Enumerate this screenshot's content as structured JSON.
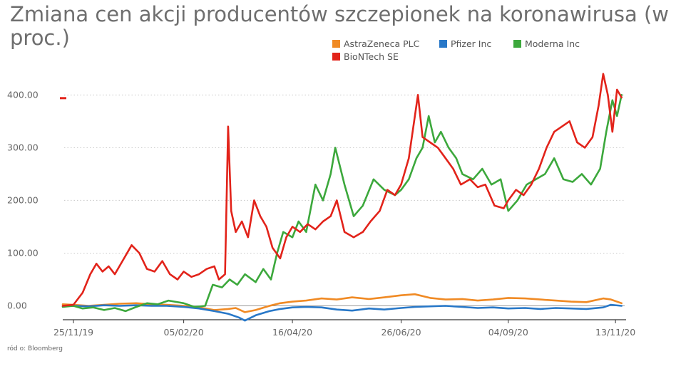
{
  "title": "Zmiana cen akcji producentów szczepionek na koronawirusa (w proc.)",
  "source": "ród o: Bloomberg",
  "chart_data": {
    "type": "line",
    "title": "Zmiana cen akcji producentów szczepionek na koronawirusa (w proc.)",
    "xlabel": "",
    "ylabel": "",
    "ylim": [
      -25,
      445
    ],
    "y_ticks": [
      0,
      100,
      200,
      300,
      400
    ],
    "y_tick_labels": [
      "0.00",
      "100.00",
      "200.00",
      "300.00",
      "400.00"
    ],
    "x_ticks": [
      "2019-11-25",
      "2020-02-05",
      "2020-04-16",
      "2020-06-26",
      "2020-09-04",
      "2020-11-13"
    ],
    "x_tick_labels": [
      "25/11/19",
      "05/02/20",
      "16/04/20",
      "26/06/20",
      "04/09/20",
      "13/11/20"
    ],
    "grid": "horizontal-dotted",
    "legend": "top-right",
    "series": [
      {
        "name": "AstraZeneca PLC",
        "color": "#f08a24",
        "points": [
          [
            "2019-11-18",
            3
          ],
          [
            "2019-11-25",
            2
          ],
          [
            "2019-12-05",
            0
          ],
          [
            "2019-12-15",
            2
          ],
          [
            "2019-12-25",
            4
          ],
          [
            "2020-01-05",
            5
          ],
          [
            "2020-01-15",
            3
          ],
          [
            "2020-01-25",
            2
          ],
          [
            "2020-02-05",
            0
          ],
          [
            "2020-02-15",
            -3
          ],
          [
            "2020-02-25",
            -8
          ],
          [
            "2020-03-05",
            -6
          ],
          [
            "2020-03-10",
            -4
          ],
          [
            "2020-03-16",
            -12
          ],
          [
            "2020-03-23",
            -8
          ],
          [
            "2020-04-01",
            0
          ],
          [
            "2020-04-08",
            5
          ],
          [
            "2020-04-16",
            8
          ],
          [
            "2020-04-25",
            10
          ],
          [
            "2020-05-05",
            14
          ],
          [
            "2020-05-15",
            12
          ],
          [
            "2020-05-25",
            16
          ],
          [
            "2020-06-05",
            13
          ],
          [
            "2020-06-15",
            16
          ],
          [
            "2020-06-26",
            20
          ],
          [
            "2020-07-05",
            22
          ],
          [
            "2020-07-15",
            15
          ],
          [
            "2020-07-25",
            12
          ],
          [
            "2020-08-05",
            13
          ],
          [
            "2020-08-15",
            10
          ],
          [
            "2020-08-25",
            12
          ],
          [
            "2020-09-04",
            15
          ],
          [
            "2020-09-15",
            14
          ],
          [
            "2020-09-25",
            12
          ],
          [
            "2020-10-05",
            10
          ],
          [
            "2020-10-15",
            8
          ],
          [
            "2020-10-25",
            7
          ],
          [
            "2020-11-05",
            14
          ],
          [
            "2020-11-10",
            12
          ],
          [
            "2020-11-17",
            5
          ]
        ]
      },
      {
        "name": "Pfizer Inc",
        "color": "#2878c8",
        "points": [
          [
            "2019-11-18",
            -1
          ],
          [
            "2019-11-25",
            0
          ],
          [
            "2019-12-05",
            -1
          ],
          [
            "2019-12-15",
            1
          ],
          [
            "2019-12-25",
            0
          ],
          [
            "2020-01-05",
            1
          ],
          [
            "2020-01-15",
            0
          ],
          [
            "2020-01-25",
            0
          ],
          [
            "2020-02-05",
            -2
          ],
          [
            "2020-02-15",
            -5
          ],
          [
            "2020-02-25",
            -10
          ],
          [
            "2020-03-05",
            -15
          ],
          [
            "2020-03-12",
            -22
          ],
          [
            "2020-03-16",
            -28
          ],
          [
            "2020-03-23",
            -18
          ],
          [
            "2020-04-01",
            -10
          ],
          [
            "2020-04-08",
            -6
          ],
          [
            "2020-04-16",
            -3
          ],
          [
            "2020-04-25",
            -2
          ],
          [
            "2020-05-05",
            -3
          ],
          [
            "2020-05-15",
            -7
          ],
          [
            "2020-05-25",
            -9
          ],
          [
            "2020-06-05",
            -5
          ],
          [
            "2020-06-15",
            -7
          ],
          [
            "2020-06-26",
            -4
          ],
          [
            "2020-07-05",
            -2
          ],
          [
            "2020-07-15",
            -1
          ],
          [
            "2020-07-25",
            0
          ],
          [
            "2020-08-05",
            -2
          ],
          [
            "2020-08-15",
            -4
          ],
          [
            "2020-08-25",
            -3
          ],
          [
            "2020-09-04",
            -5
          ],
          [
            "2020-09-15",
            -4
          ],
          [
            "2020-09-25",
            -6
          ],
          [
            "2020-10-05",
            -4
          ],
          [
            "2020-10-15",
            -5
          ],
          [
            "2020-10-25",
            -6
          ],
          [
            "2020-11-05",
            -3
          ],
          [
            "2020-11-10",
            2
          ],
          [
            "2020-11-17",
            0
          ]
        ]
      },
      {
        "name": "Moderna Inc",
        "color": "#3ca83c",
        "points": [
          [
            "2019-11-18",
            -2
          ],
          [
            "2019-11-25",
            0
          ],
          [
            "2019-12-01",
            -5
          ],
          [
            "2019-12-08",
            -3
          ],
          [
            "2019-12-15",
            -8
          ],
          [
            "2019-12-22",
            -4
          ],
          [
            "2019-12-29",
            -10
          ],
          [
            "2020-01-05",
            -2
          ],
          [
            "2020-01-12",
            5
          ],
          [
            "2020-01-19",
            3
          ],
          [
            "2020-01-26",
            10
          ],
          [
            "2020-02-05",
            5
          ],
          [
            "2020-02-12",
            -2
          ],
          [
            "2020-02-19",
            0
          ],
          [
            "2020-02-24",
            40
          ],
          [
            "2020-03-01",
            35
          ],
          [
            "2020-03-06",
            50
          ],
          [
            "2020-03-11",
            40
          ],
          [
            "2020-03-16",
            60
          ],
          [
            "2020-03-23",
            45
          ],
          [
            "2020-03-28",
            70
          ],
          [
            "2020-04-02",
            50
          ],
          [
            "2020-04-06",
            100
          ],
          [
            "2020-04-10",
            140
          ],
          [
            "2020-04-16",
            130
          ],
          [
            "2020-04-20",
            160
          ],
          [
            "2020-04-25",
            140
          ],
          [
            "2020-05-01",
            230
          ],
          [
            "2020-05-06",
            200
          ],
          [
            "2020-05-11",
            250
          ],
          [
            "2020-05-14",
            300
          ],
          [
            "2020-05-20",
            230
          ],
          [
            "2020-05-26",
            170
          ],
          [
            "2020-06-01",
            190
          ],
          [
            "2020-06-08",
            240
          ],
          [
            "2020-06-15",
            220
          ],
          [
            "2020-06-22",
            210
          ],
          [
            "2020-06-26",
            220
          ],
          [
            "2020-07-01",
            240
          ],
          [
            "2020-07-06",
            280
          ],
          [
            "2020-07-10",
            300
          ],
          [
            "2020-07-14",
            360
          ],
          [
            "2020-07-18",
            310
          ],
          [
            "2020-07-22",
            330
          ],
          [
            "2020-07-27",
            300
          ],
          [
            "2020-08-01",
            280
          ],
          [
            "2020-08-05",
            250
          ],
          [
            "2020-08-12",
            240
          ],
          [
            "2020-08-18",
            260
          ],
          [
            "2020-08-24",
            230
          ],
          [
            "2020-08-30",
            240
          ],
          [
            "2020-09-04",
            180
          ],
          [
            "2020-09-10",
            200
          ],
          [
            "2020-09-16",
            230
          ],
          [
            "2020-09-22",
            240
          ],
          [
            "2020-09-28",
            250
          ],
          [
            "2020-10-04",
            280
          ],
          [
            "2020-10-10",
            240
          ],
          [
            "2020-10-16",
            235
          ],
          [
            "2020-10-22",
            250
          ],
          [
            "2020-10-28",
            230
          ],
          [
            "2020-11-03",
            260
          ],
          [
            "2020-11-07",
            330
          ],
          [
            "2020-11-11",
            390
          ],
          [
            "2020-11-14",
            360
          ],
          [
            "2020-11-17",
            400
          ]
        ]
      },
      {
        "name": "BioNTech SE",
        "color": "#e2231a",
        "points": [
          [
            "2019-11-18",
            0
          ],
          [
            "2019-11-25",
            2
          ],
          [
            "2019-12-01",
            25
          ],
          [
            "2019-12-06",
            60
          ],
          [
            "2019-12-10",
            80
          ],
          [
            "2019-12-14",
            65
          ],
          [
            "2019-12-18",
            75
          ],
          [
            "2019-12-22",
            60
          ],
          [
            "2019-12-28",
            90
          ],
          [
            "2020-01-02",
            115
          ],
          [
            "2020-01-07",
            100
          ],
          [
            "2020-01-12",
            70
          ],
          [
            "2020-01-17",
            65
          ],
          [
            "2020-01-22",
            85
          ],
          [
            "2020-01-27",
            60
          ],
          [
            "2020-02-01",
            50
          ],
          [
            "2020-02-05",
            65
          ],
          [
            "2020-02-10",
            55
          ],
          [
            "2020-02-15",
            60
          ],
          [
            "2020-02-20",
            70
          ],
          [
            "2020-02-25",
            75
          ],
          [
            "2020-02-28",
            50
          ],
          [
            "2020-03-03",
            60
          ],
          [
            "2020-03-05",
            340
          ],
          [
            "2020-03-07",
            180
          ],
          [
            "2020-03-10",
            140
          ],
          [
            "2020-03-14",
            160
          ],
          [
            "2020-03-18",
            130
          ],
          [
            "2020-03-22",
            200
          ],
          [
            "2020-03-26",
            170
          ],
          [
            "2020-03-30",
            150
          ],
          [
            "2020-04-03",
            110
          ],
          [
            "2020-04-08",
            90
          ],
          [
            "2020-04-12",
            130
          ],
          [
            "2020-04-16",
            150
          ],
          [
            "2020-04-21",
            140
          ],
          [
            "2020-04-26",
            155
          ],
          [
            "2020-05-01",
            145
          ],
          [
            "2020-05-06",
            160
          ],
          [
            "2020-05-11",
            170
          ],
          [
            "2020-05-15",
            200
          ],
          [
            "2020-05-20",
            140
          ],
          [
            "2020-05-26",
            130
          ],
          [
            "2020-06-01",
            140
          ],
          [
            "2020-06-06",
            160
          ],
          [
            "2020-06-12",
            180
          ],
          [
            "2020-06-17",
            220
          ],
          [
            "2020-06-22",
            210
          ],
          [
            "2020-06-26",
            230
          ],
          [
            "2020-07-01",
            280
          ],
          [
            "2020-07-04",
            340
          ],
          [
            "2020-07-07",
            400
          ],
          [
            "2020-07-10",
            320
          ],
          [
            "2020-07-15",
            310
          ],
          [
            "2020-07-20",
            300
          ],
          [
            "2020-07-25",
            280
          ],
          [
            "2020-07-30",
            260
          ],
          [
            "2020-08-04",
            230
          ],
          [
            "2020-08-10",
            240
          ],
          [
            "2020-08-15",
            225
          ],
          [
            "2020-08-20",
            230
          ],
          [
            "2020-08-26",
            190
          ],
          [
            "2020-09-01",
            185
          ],
          [
            "2020-09-04",
            200
          ],
          [
            "2020-09-09",
            220
          ],
          [
            "2020-09-14",
            210
          ],
          [
            "2020-09-19",
            230
          ],
          [
            "2020-09-24",
            260
          ],
          [
            "2020-09-29",
            300
          ],
          [
            "2020-10-04",
            330
          ],
          [
            "2020-10-09",
            340
          ],
          [
            "2020-10-14",
            350
          ],
          [
            "2020-10-19",
            310
          ],
          [
            "2020-10-24",
            300
          ],
          [
            "2020-10-29",
            320
          ],
          [
            "2020-11-02",
            380
          ],
          [
            "2020-11-05",
            440
          ],
          [
            "2020-11-08",
            400
          ],
          [
            "2020-11-11",
            330
          ],
          [
            "2020-11-14",
            410
          ],
          [
            "2020-11-17",
            395
          ]
        ]
      }
    ]
  }
}
